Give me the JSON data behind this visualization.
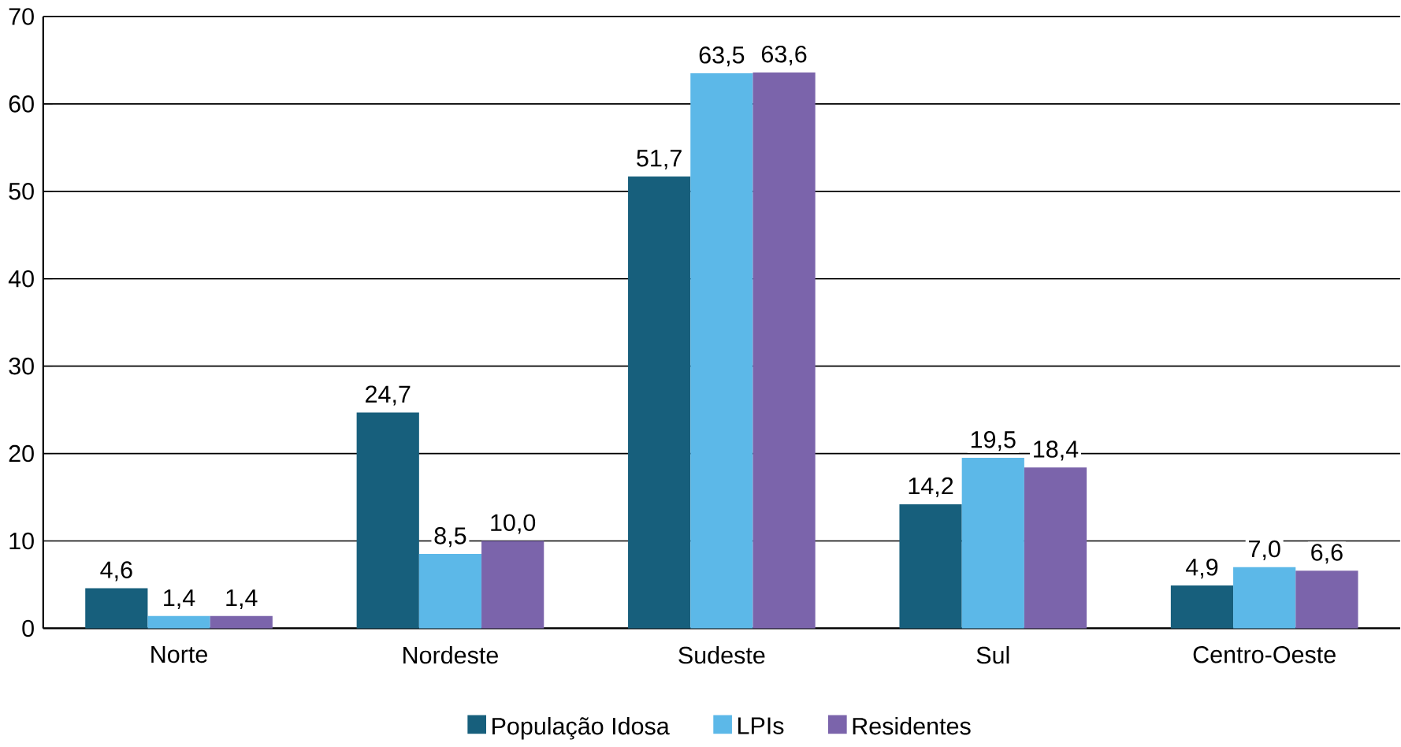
{
  "chart_data": {
    "type": "bar",
    "categories": [
      "Norte",
      "Nordeste",
      "Sudeste",
      "Sul",
      "Centro-Oeste"
    ],
    "series": [
      {
        "name": "População Idosa",
        "color": "#175f7c",
        "values": [
          4.6,
          24.7,
          51.7,
          14.2,
          4.9
        ],
        "value_labels": [
          "4,6",
          "24,7",
          "51,7",
          "14,2",
          "4,9"
        ]
      },
      {
        "name": "LPIs",
        "color": "#5cb8e8",
        "values": [
          1.4,
          8.5,
          63.5,
          19.5,
          7.0
        ],
        "value_labels": [
          "1,4",
          "8,5",
          "63,5",
          "19,5",
          "7,0"
        ]
      },
      {
        "name": "Residentes",
        "color": "#7b64ab",
        "values": [
          1.4,
          10.0,
          63.6,
          18.4,
          6.6
        ],
        "value_labels": [
          "1,4",
          "10,0",
          "63,6",
          "18,4",
          "6,6"
        ]
      }
    ],
    "ylim": [
      0,
      70
    ],
    "yticks": [
      0,
      10,
      20,
      30,
      40,
      50,
      60,
      70
    ],
    "grid": "y",
    "legend": "bottom"
  }
}
